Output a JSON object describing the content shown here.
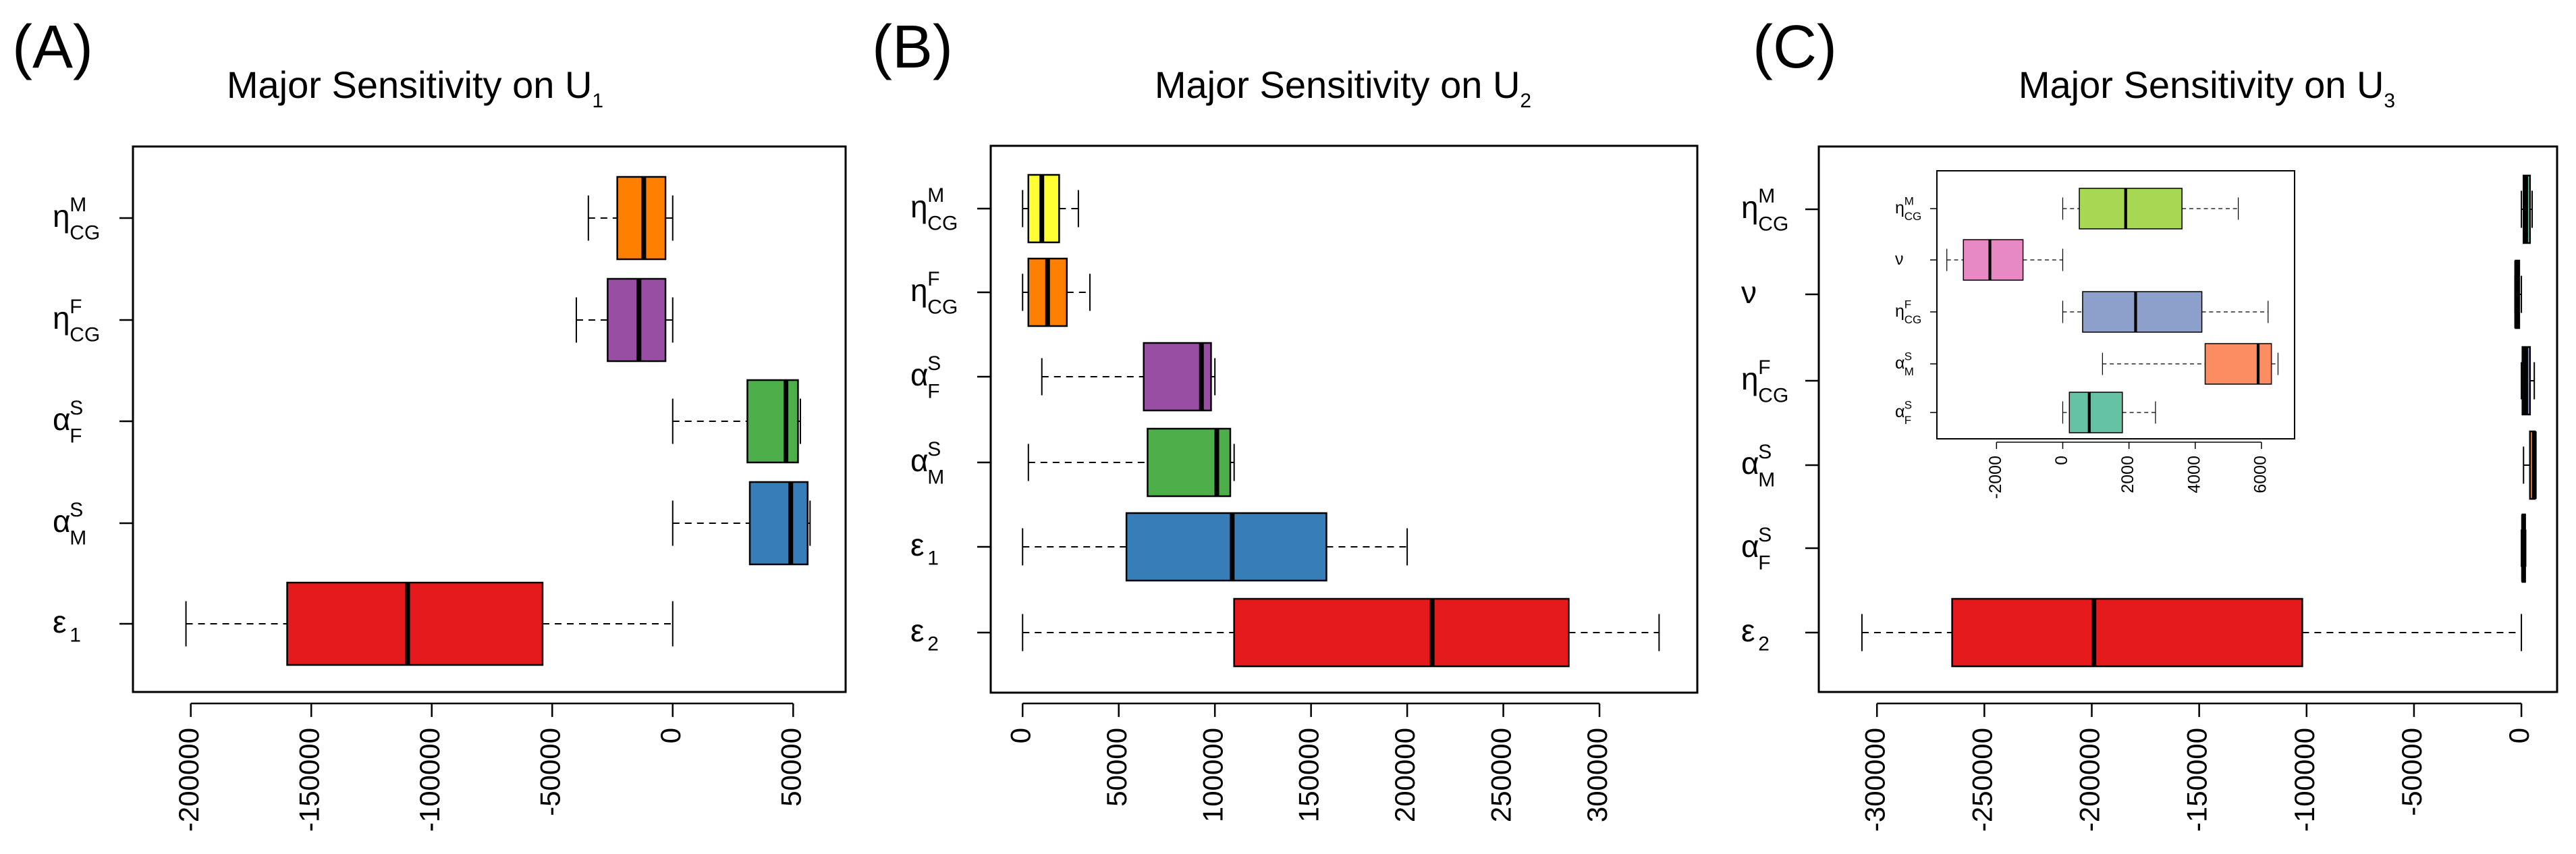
{
  "chart_data": [
    {
      "type": "boxplot",
      "panel_label": "(A)",
      "title": {
        "text": "Major Sensitivity on U",
        "sub": "1"
      },
      "orientation": "horizontal",
      "xlim": [
        -210000,
        60000
      ],
      "ticks": [
        -200000,
        -150000,
        -100000,
        -50000,
        0,
        50000
      ],
      "tick_labels": [
        "-200000",
        "-150000",
        "-100000",
        "-50000",
        "0",
        "50000"
      ],
      "categories": [
        {
          "sym": "η",
          "sup": "M",
          "sub": "CG",
          "color": "#FF7F00",
          "stats": [
            -35000,
            -23000,
            -12000,
            -3000,
            0
          ]
        },
        {
          "sym": "η",
          "sup": "F",
          "sub": "CG",
          "color": "#984EA3",
          "stats": [
            -40000,
            -27000,
            -14000,
            -3000,
            0
          ]
        },
        {
          "sym": "α",
          "sup": "S",
          "sub": "F",
          "color": "#4DAF4A",
          "stats": [
            0,
            31000,
            47000,
            52000,
            53000
          ]
        },
        {
          "sym": "α",
          "sup": "S",
          "sub": "M",
          "color": "#377EB8",
          "stats": [
            0,
            32000,
            49000,
            56000,
            57000
          ]
        },
        {
          "sym": "ε",
          "sup": "",
          "sub": "1",
          "color": "#E41A1C",
          "stats": [
            -202000,
            -160000,
            -110000,
            -54000,
            0
          ]
        }
      ]
    },
    {
      "type": "boxplot",
      "panel_label": "(B)",
      "title": {
        "text": "Major Sensitivity on U",
        "sub": "2"
      },
      "orientation": "horizontal",
      "xlim": [
        -5000,
        340000
      ],
      "ticks": [
        0,
        50000,
        100000,
        150000,
        200000,
        250000,
        300000
      ],
      "tick_labels": [
        "0",
        "50000",
        "100000",
        "150000",
        "200000",
        "250000",
        "300000"
      ],
      "categories": [
        {
          "sym": "η",
          "sup": "M",
          "sub": "CG",
          "color": "#FFFF33",
          "stats": [
            0,
            3000,
            10000,
            19000,
            29000
          ]
        },
        {
          "sym": "η",
          "sup": "F",
          "sub": "CG",
          "color": "#FF7F00",
          "stats": [
            0,
            3000,
            13000,
            23000,
            35000
          ]
        },
        {
          "sym": "α",
          "sup": "S",
          "sub": "F",
          "color": "#984EA3",
          "stats": [
            10000,
            63000,
            93000,
            98000,
            100000
          ]
        },
        {
          "sym": "α",
          "sup": "S",
          "sub": "M",
          "color": "#4DAF4A",
          "stats": [
            3000,
            65000,
            101000,
            108000,
            110000
          ]
        },
        {
          "sym": "ε",
          "sup": "",
          "sub": "1",
          "color": "#377EB8",
          "stats": [
            0,
            54000,
            109000,
            158000,
            200000
          ]
        },
        {
          "sym": "ε",
          "sup": "",
          "sub": "2",
          "color": "#E41A1C",
          "stats": [
            0,
            110000,
            213000,
            284000,
            331000
          ]
        }
      ]
    },
    {
      "type": "boxplot",
      "panel_label": "(C)",
      "title": {
        "text": "Major Sensitivity on U",
        "sub": "3"
      },
      "orientation": "horizontal",
      "xlim": [
        -312000,
        5000
      ],
      "ticks": [
        -300000,
        -250000,
        -200000,
        -150000,
        -100000,
        -50000,
        0
      ],
      "tick_labels": [
        "-300000",
        "-250000",
        "-200000",
        "-150000",
        "-100000",
        "-50000",
        "0"
      ],
      "categories": [
        {
          "sym": "η",
          "sup": "M",
          "sub": "CG",
          "color": "#66C2A5",
          "stats": [
            0,
            1000,
            2000,
            4000,
            5000
          ]
        },
        {
          "sym": "ν",
          "sup": "",
          "sub": "",
          "color": "#E78AC3",
          "stats": [
            -3000,
            -2700,
            -2200,
            -1000,
            0
          ]
        },
        {
          "sym": "η",
          "sup": "F",
          "sub": "CG",
          "color": "#8DA0CB",
          "stats": [
            0,
            500,
            2000,
            4000,
            6000
          ]
        },
        {
          "sym": "α",
          "sup": "S",
          "sub": "M",
          "color": "#FC8D62",
          "stats": [
            1000,
            4000,
            6000,
            6300,
            6500
          ]
        },
        {
          "sym": "α",
          "sup": "S",
          "sub": "F",
          "color": "#A6D854",
          "stats": [
            0,
            500,
            1000,
            1700,
            2000
          ]
        },
        {
          "sym": "ε",
          "sup": "",
          "sub": "2",
          "color": "#E41A1C",
          "stats": [
            -307000,
            -265000,
            -199000,
            -102000,
            0
          ]
        }
      ],
      "inset": {
        "xlim": [
          -3800,
          7000
        ],
        "ticks": [
          -2000,
          0,
          2000,
          4000,
          6000
        ],
        "tick_labels": [
          "-2000",
          "0",
          "2000",
          "4000",
          "6000"
        ],
        "categories": [
          {
            "sym": "η",
            "sup": "M",
            "sub": "CG",
            "color": "#A6D854",
            "stats": [
              0,
              500,
              1900,
              3600,
              5300
            ]
          },
          {
            "sym": "ν",
            "sup": "",
            "sub": "",
            "color": "#E78AC3",
            "stats": [
              -3500,
              -3000,
              -2200,
              -1200,
              0
            ]
          },
          {
            "sym": "η",
            "sup": "F",
            "sub": "CG",
            "color": "#8DA0CB",
            "stats": [
              0,
              600,
              2200,
              4200,
              6200
            ]
          },
          {
            "sym": "α",
            "sup": "S",
            "sub": "M",
            "color": "#FC8D62",
            "stats": [
              1200,
              4300,
              5900,
              6300,
              6500
            ]
          },
          {
            "sym": "α",
            "sup": "S",
            "sub": "F",
            "color": "#66C2A5",
            "stats": [
              0,
              200,
              800,
              1800,
              2800
            ]
          }
        ]
      }
    }
  ]
}
